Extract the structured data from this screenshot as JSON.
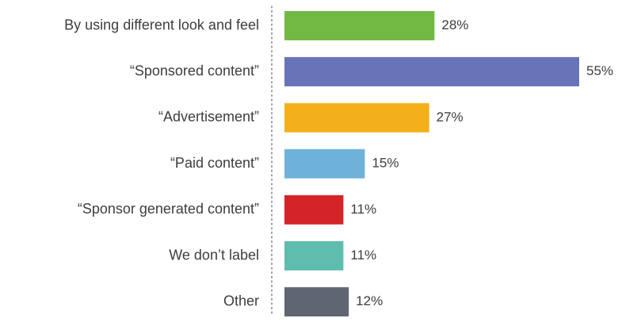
{
  "chart_data": {
    "type": "bar",
    "orientation": "horizontal",
    "categories": [
      "By using different look and feel",
      "“Sponsored content”",
      "“Advertisement”",
      "“Paid content”",
      "“Sponsor generated content”",
      "We don’t label",
      "Other"
    ],
    "values": [
      28,
      55,
      27,
      15,
      11,
      11,
      12
    ],
    "value_labels": [
      "28%",
      "55%",
      "27%",
      "15%",
      "11%",
      "11%",
      "12%"
    ],
    "colors": [
      "#72b944",
      "#6873b8",
      "#f4b01a",
      "#6eb1d9",
      "#d42428",
      "#5fbdb0",
      "#5f6671"
    ],
    "title": "",
    "xlabel": "",
    "ylabel": "",
    "xlim": [
      0,
      55
    ],
    "unit": "%",
    "grid": false,
    "legend": "none",
    "axis_style": "dotted-vertical-baseline"
  }
}
